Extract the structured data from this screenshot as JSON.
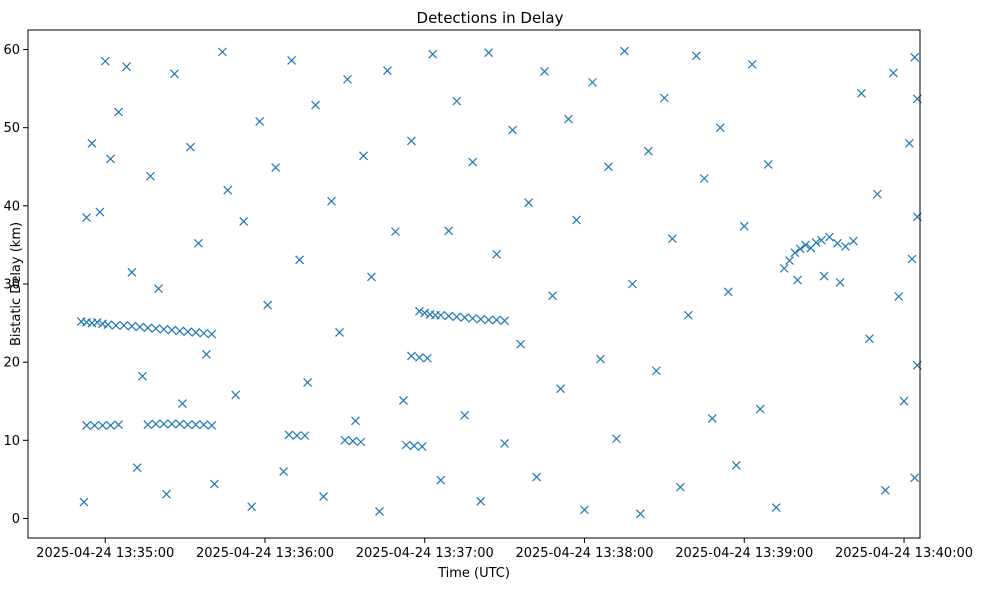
{
  "chart_data": {
    "type": "scatter",
    "title": "Detections in Delay",
    "xlabel": "Time (UTC)",
    "ylabel": "Bistatic Delay (km)",
    "x_axis_kind": "datetime",
    "xlim": [
      "2025-04-24 13:34:31",
      "2025-04-24 13:40:06"
    ],
    "ylim": [
      -2.5,
      62.5
    ],
    "x_ticks": [
      "2025-04-24 13:35:00",
      "2025-04-24 13:36:00",
      "2025-04-24 13:37:00",
      "2025-04-24 13:38:00",
      "2025-04-24 13:39:00",
      "2025-04-24 13:40:00"
    ],
    "y_ticks": [
      0,
      10,
      20,
      30,
      40,
      50,
      60
    ],
    "marker": "x",
    "color": "#1f77b4",
    "grid": false,
    "legend": "none",
    "note": "Point set approximated: strong tracks near 25 km and 12 km (13:34:50-13:35:45), ~26 km (13:37:00-13:37:30), a rising cluster ~30-36 km (13:39:15-13:39:40), plus scattered clutter 0-60 km.",
    "series": [
      {
        "points": [
          [
            "2025-04-24 13:34:51",
            25.2
          ],
          [
            "2025-04-24 13:34:53",
            25.1
          ],
          [
            "2025-04-24 13:34:55",
            25.0
          ],
          [
            "2025-04-24 13:34:57",
            25.1
          ],
          [
            "2025-04-24 13:34:59",
            24.9
          ],
          [
            "2025-04-24 13:35:01",
            24.8
          ],
          [
            "2025-04-24 13:35:04",
            24.7
          ],
          [
            "2025-04-24 13:35:07",
            24.7
          ],
          [
            "2025-04-24 13:35:10",
            24.6
          ],
          [
            "2025-04-24 13:35:13",
            24.5
          ],
          [
            "2025-04-24 13:35:16",
            24.4
          ],
          [
            "2025-04-24 13:35:19",
            24.3
          ],
          [
            "2025-04-24 13:35:22",
            24.2
          ],
          [
            "2025-04-24 13:35:25",
            24.1
          ],
          [
            "2025-04-24 13:35:28",
            24.0
          ],
          [
            "2025-04-24 13:35:31",
            23.9
          ],
          [
            "2025-04-24 13:35:34",
            23.8
          ],
          [
            "2025-04-24 13:35:37",
            23.7
          ],
          [
            "2025-04-24 13:35:40",
            23.6
          ],
          [
            "2025-04-24 13:34:53",
            11.9
          ],
          [
            "2025-04-24 13:34:56",
            11.9
          ],
          [
            "2025-04-24 13:34:59",
            11.9
          ],
          [
            "2025-04-24 13:35:02",
            11.9
          ],
          [
            "2025-04-24 13:35:05",
            12.0
          ],
          [
            "2025-04-24 13:35:16",
            12.0
          ],
          [
            "2025-04-24 13:35:19",
            12.1
          ],
          [
            "2025-04-24 13:35:22",
            12.1
          ],
          [
            "2025-04-24 13:35:25",
            12.1
          ],
          [
            "2025-04-24 13:35:28",
            12.1
          ],
          [
            "2025-04-24 13:35:31",
            12.0
          ],
          [
            "2025-04-24 13:35:34",
            12.0
          ],
          [
            "2025-04-24 13:35:37",
            12.0
          ],
          [
            "2025-04-24 13:35:40",
            11.9
          ],
          [
            "2025-04-24 13:36:58",
            26.5
          ],
          [
            "2025-04-24 13:37:00",
            26.3
          ],
          [
            "2025-04-24 13:37:02",
            26.1
          ],
          [
            "2025-04-24 13:37:04",
            26.0
          ],
          [
            "2025-04-24 13:37:06",
            26.0
          ],
          [
            "2025-04-24 13:37:09",
            25.9
          ],
          [
            "2025-04-24 13:37:12",
            25.8
          ],
          [
            "2025-04-24 13:37:15",
            25.7
          ],
          [
            "2025-04-24 13:37:18",
            25.6
          ],
          [
            "2025-04-24 13:37:21",
            25.5
          ],
          [
            "2025-04-24 13:37:24",
            25.4
          ],
          [
            "2025-04-24 13:37:27",
            25.4
          ],
          [
            "2025-04-24 13:37:30",
            25.3
          ],
          [
            "2025-04-24 13:36:09",
            10.7
          ],
          [
            "2025-04-24 13:36:12",
            10.6
          ],
          [
            "2025-04-24 13:36:15",
            10.6
          ],
          [
            "2025-04-24 13:36:30",
            10.0
          ],
          [
            "2025-04-24 13:36:33",
            9.9
          ],
          [
            "2025-04-24 13:36:36",
            9.8
          ],
          [
            "2025-04-24 13:36:53",
            9.4
          ],
          [
            "2025-04-24 13:36:56",
            9.3
          ],
          [
            "2025-04-24 13:36:59",
            9.2
          ],
          [
            "2025-04-24 13:36:55",
            20.8
          ],
          [
            "2025-04-24 13:36:58",
            20.6
          ],
          [
            "2025-04-24 13:37:01",
            20.5
          ],
          [
            "2025-04-24 13:39:15",
            32.0
          ],
          [
            "2025-04-24 13:39:17",
            33.0
          ],
          [
            "2025-04-24 13:39:19",
            34.0
          ],
          [
            "2025-04-24 13:39:21",
            34.5
          ],
          [
            "2025-04-24 13:39:23",
            35.0
          ],
          [
            "2025-04-24 13:39:25",
            34.6
          ],
          [
            "2025-04-24 13:39:27",
            35.3
          ],
          [
            "2025-04-24 13:39:29",
            35.6
          ],
          [
            "2025-04-24 13:39:32",
            36.0
          ],
          [
            "2025-04-24 13:39:35",
            35.2
          ],
          [
            "2025-04-24 13:39:38",
            34.8
          ],
          [
            "2025-04-24 13:39:41",
            35.5
          ],
          [
            "2025-04-24 13:39:20",
            30.5
          ],
          [
            "2025-04-24 13:39:30",
            31.0
          ],
          [
            "2025-04-24 13:39:36",
            30.2
          ],
          [
            "2025-04-24 13:34:52",
            2.1
          ],
          [
            "2025-04-24 13:34:53",
            38.5
          ],
          [
            "2025-04-24 13:34:55",
            48.0
          ],
          [
            "2025-04-24 13:34:58",
            39.2
          ],
          [
            "2025-04-24 13:35:00",
            58.5
          ],
          [
            "2025-04-24 13:35:02",
            46.0
          ],
          [
            "2025-04-24 13:35:05",
            52.0
          ],
          [
            "2025-04-24 13:35:08",
            57.8
          ],
          [
            "2025-04-24 13:35:10",
            31.5
          ],
          [
            "2025-04-24 13:35:12",
            6.5
          ],
          [
            "2025-04-24 13:35:14",
            18.2
          ],
          [
            "2025-04-24 13:35:17",
            43.8
          ],
          [
            "2025-04-24 13:35:20",
            29.4
          ],
          [
            "2025-04-24 13:35:23",
            3.1
          ],
          [
            "2025-04-24 13:35:26",
            56.9
          ],
          [
            "2025-04-24 13:35:29",
            14.7
          ],
          [
            "2025-04-24 13:35:32",
            47.5
          ],
          [
            "2025-04-24 13:35:35",
            35.2
          ],
          [
            "2025-04-24 13:35:38",
            21.0
          ],
          [
            "2025-04-24 13:35:41",
            4.4
          ],
          [
            "2025-04-24 13:35:44",
            59.7
          ],
          [
            "2025-04-24 13:35:46",
            42.0
          ],
          [
            "2025-04-24 13:35:49",
            15.8
          ],
          [
            "2025-04-24 13:35:52",
            38.0
          ],
          [
            "2025-04-24 13:35:55",
            1.5
          ],
          [
            "2025-04-24 13:35:58",
            50.8
          ],
          [
            "2025-04-24 13:36:01",
            27.3
          ],
          [
            "2025-04-24 13:36:04",
            44.9
          ],
          [
            "2025-04-24 13:36:07",
            6.0
          ],
          [
            "2025-04-24 13:36:10",
            58.6
          ],
          [
            "2025-04-24 13:36:13",
            33.1
          ],
          [
            "2025-04-24 13:36:16",
            17.4
          ],
          [
            "2025-04-24 13:36:19",
            52.9
          ],
          [
            "2025-04-24 13:36:22",
            2.8
          ],
          [
            "2025-04-24 13:36:25",
            40.6
          ],
          [
            "2025-04-24 13:36:28",
            23.8
          ],
          [
            "2025-04-24 13:36:31",
            56.2
          ],
          [
            "2025-04-24 13:36:34",
            12.5
          ],
          [
            "2025-04-24 13:36:37",
            46.4
          ],
          [
            "2025-04-24 13:36:40",
            30.9
          ],
          [
            "2025-04-24 13:36:43",
            0.9
          ],
          [
            "2025-04-24 13:36:46",
            57.3
          ],
          [
            "2025-04-24 13:36:49",
            36.7
          ],
          [
            "2025-04-24 13:36:52",
            15.1
          ],
          [
            "2025-04-24 13:36:55",
            48.3
          ],
          [
            "2025-04-24 13:37:03",
            59.4
          ],
          [
            "2025-04-24 13:37:06",
            4.9
          ],
          [
            "2025-04-24 13:37:09",
            36.8
          ],
          [
            "2025-04-24 13:37:12",
            53.4
          ],
          [
            "2025-04-24 13:37:15",
            13.2
          ],
          [
            "2025-04-24 13:37:18",
            45.6
          ],
          [
            "2025-04-24 13:37:21",
            2.2
          ],
          [
            "2025-04-24 13:37:24",
            59.6
          ],
          [
            "2025-04-24 13:37:27",
            33.8
          ],
          [
            "2025-04-24 13:37:30",
            9.6
          ],
          [
            "2025-04-24 13:37:33",
            49.7
          ],
          [
            "2025-04-24 13:37:36",
            22.3
          ],
          [
            "2025-04-24 13:37:39",
            40.4
          ],
          [
            "2025-04-24 13:37:42",
            5.3
          ],
          [
            "2025-04-24 13:37:45",
            57.2
          ],
          [
            "2025-04-24 13:37:48",
            28.5
          ],
          [
            "2025-04-24 13:37:51",
            16.6
          ],
          [
            "2025-04-24 13:37:54",
            51.1
          ],
          [
            "2025-04-24 13:37:57",
            38.2
          ],
          [
            "2025-04-24 13:38:00",
            1.1
          ],
          [
            "2025-04-24 13:38:03",
            55.8
          ],
          [
            "2025-04-24 13:38:06",
            20.4
          ],
          [
            "2025-04-24 13:38:09",
            45.0
          ],
          [
            "2025-04-24 13:38:12",
            10.2
          ],
          [
            "2025-04-24 13:38:15",
            59.8
          ],
          [
            "2025-04-24 13:38:18",
            30.0
          ],
          [
            "2025-04-24 13:38:21",
            0.6
          ],
          [
            "2025-04-24 13:38:24",
            47.0
          ],
          [
            "2025-04-24 13:38:27",
            18.9
          ],
          [
            "2025-04-24 13:38:30",
            53.8
          ],
          [
            "2025-04-24 13:38:33",
            35.8
          ],
          [
            "2025-04-24 13:38:36",
            4.0
          ],
          [
            "2025-04-24 13:38:39",
            26.0
          ],
          [
            "2025-04-24 13:38:42",
            59.2
          ],
          [
            "2025-04-24 13:38:45",
            43.5
          ],
          [
            "2025-04-24 13:38:48",
            12.8
          ],
          [
            "2025-04-24 13:38:51",
            50.0
          ],
          [
            "2025-04-24 13:38:54",
            29.0
          ],
          [
            "2025-04-24 13:38:57",
            6.8
          ],
          [
            "2025-04-24 13:39:00",
            37.4
          ],
          [
            "2025-04-24 13:39:03",
            58.1
          ],
          [
            "2025-04-24 13:39:06",
            14.0
          ],
          [
            "2025-04-24 13:39:09",
            45.3
          ],
          [
            "2025-04-24 13:39:12",
            1.4
          ],
          [
            "2025-04-24 13:39:44",
            54.4
          ],
          [
            "2025-04-24 13:39:47",
            23.0
          ],
          [
            "2025-04-24 13:39:50",
            41.5
          ],
          [
            "2025-04-24 13:39:53",
            3.6
          ],
          [
            "2025-04-24 13:39:56",
            57.0
          ],
          [
            "2025-04-24 13:39:58",
            28.4
          ],
          [
            "2025-04-24 13:40:00",
            15.0
          ],
          [
            "2025-04-24 13:40:02",
            48.0
          ],
          [
            "2025-04-24 13:40:03",
            33.2
          ],
          [
            "2025-04-24 13:40:04",
            59.0
          ],
          [
            "2025-04-24 13:40:04",
            5.2
          ],
          [
            "2025-04-24 13:40:05",
            38.6
          ],
          [
            "2025-04-24 13:40:05",
            19.6
          ],
          [
            "2025-04-24 13:40:05",
            53.7
          ]
        ]
      }
    ]
  }
}
